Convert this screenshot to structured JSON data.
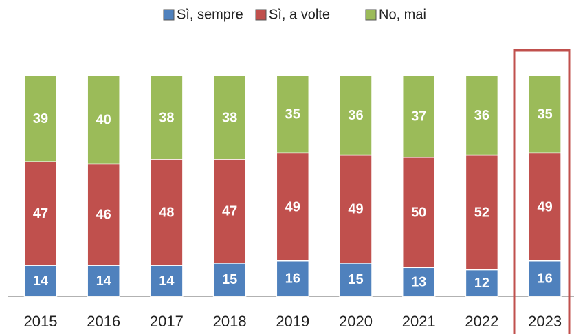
{
  "chart_data": {
    "type": "stacked-bar",
    "categories": [
      "2015",
      "2016",
      "2017",
      "2018",
      "2019",
      "2020",
      "2021",
      "2022",
      "2023"
    ],
    "series": [
      {
        "name": "Sì, sempre",
        "color": "#4f81bd",
        "values": [
          14,
          14,
          14,
          15,
          16,
          15,
          13,
          12,
          16
        ]
      },
      {
        "name": "Sì, a volte",
        "color": "#c0504d",
        "values": [
          47,
          46,
          48,
          47,
          49,
          49,
          50,
          52,
          49
        ]
      },
      {
        "name": "No, mai",
        "color": "#9bbb59",
        "values": [
          39,
          40,
          38,
          38,
          35,
          36,
          37,
          36,
          35
        ]
      }
    ],
    "legend": "top"
  }
}
